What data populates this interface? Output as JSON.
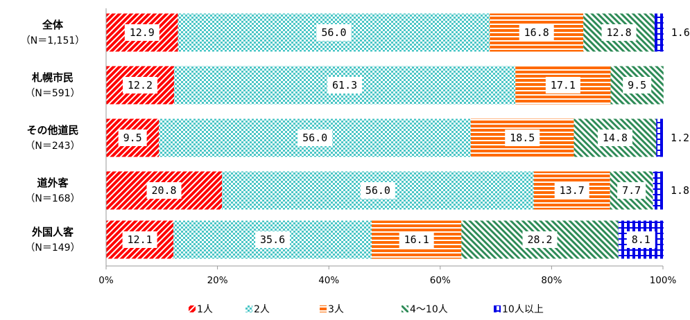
{
  "chart_data": {
    "type": "bar",
    "orientation": "horizontal",
    "stacked": true,
    "categories": [
      "全体",
      "札幌市民",
      "その他道民",
      "道外客",
      "外国人客"
    ],
    "category_counts": [
      "（N＝1,151）",
      "（N＝591）",
      "（N＝243）",
      "（N＝168）",
      "（N＝149）"
    ],
    "series": [
      {
        "name": "1人",
        "values": [
          12.9,
          12.2,
          9.5,
          20.8,
          12.1
        ],
        "color": "#ff0000",
        "pattern": "diag-red"
      },
      {
        "name": "2人",
        "values": [
          56.0,
          61.3,
          56.0,
          56.0,
          35.6
        ],
        "color": "#4bc6c6",
        "pattern": "check-teal"
      },
      {
        "name": "3人",
        "values": [
          16.8,
          17.1,
          18.5,
          13.7,
          16.1
        ],
        "color": "#ff6a00",
        "pattern": "stripe-orange"
      },
      {
        "name": "4〜10人",
        "values": [
          12.8,
          9.5,
          14.8,
          7.7,
          28.2
        ],
        "color": "#2e8b57",
        "pattern": "diag-green"
      },
      {
        "name": "10人以上",
        "values": [
          1.6,
          0,
          1.2,
          1.8,
          8.1
        ],
        "color": "#0000e6",
        "pattern": "grid-blue"
      }
    ],
    "data_labels": [
      [
        "12.9",
        "56.0",
        "16.8",
        "12.8",
        "1.6"
      ],
      [
        "12.2",
        "61.3",
        "17.1",
        "9.5",
        ""
      ],
      [
        "9.5",
        "56.0",
        "18.5",
        "14.8",
        "1.2"
      ],
      [
        "20.8",
        "56.0",
        "13.7",
        "7.7",
        "1.8"
      ],
      [
        "12.1",
        "35.6",
        "16.1",
        "28.2",
        "8.1"
      ]
    ],
    "xlim": [
      0,
      100
    ],
    "xticks": [
      "0%",
      "20%",
      "40%",
      "60%",
      "80%",
      "100%"
    ],
    "legend_position": "bottom",
    "grid": false
  }
}
